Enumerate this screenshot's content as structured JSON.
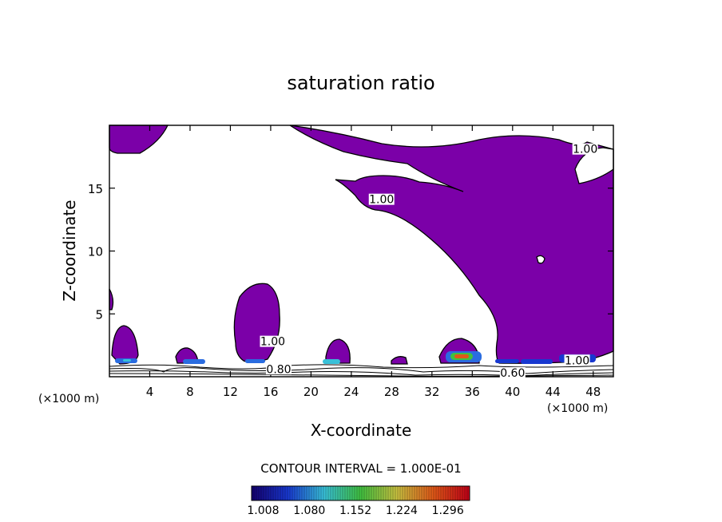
{
  "chart_data": {
    "type": "contour",
    "title": "saturation ratio",
    "xlabel": "X-coordinate",
    "ylabel": "Z-coordinate",
    "x_unit": "(×1000 m)",
    "x_unit_right": "(×1000 m)",
    "xlim": [
      0,
      50
    ],
    "ylim": [
      0,
      20
    ],
    "x_ticks": [
      4,
      8,
      12,
      16,
      20,
      24,
      28,
      32,
      36,
      40,
      44,
      48
    ],
    "y_ticks": [
      5,
      10,
      15
    ],
    "contour_labels": [
      {
        "text": "1.00",
        "x": 47.2,
        "z": 17.8
      },
      {
        "text": "1.00",
        "x": 27.0,
        "z": 13.8
      },
      {
        "text": "1.00",
        "x": 16.2,
        "z": 2.5
      },
      {
        "text": "1.00",
        "x": 46.4,
        "z": 1.0
      },
      {
        "text": "0.80",
        "x": 16.8,
        "z": 0.3
      },
      {
        "text": "0.60",
        "x": 40.0,
        "z": 0.0
      }
    ],
    "contour_interval_text": "CONTOUR INTERVAL = 1.000E-01",
    "colorbar": {
      "colors": [
        "#14006e",
        "#1838d0",
        "#38c0d8",
        "#40c040",
        "#c8c040",
        "#e05818",
        "#c00018"
      ],
      "range": [
        0.99,
        1.33
      ],
      "tick_labels": [
        "1.008",
        "1.080",
        "1.152",
        "1.224",
        "1.296"
      ]
    },
    "colors": {
      "fill": "#7b00a8",
      "contour": "#000000"
    }
  }
}
